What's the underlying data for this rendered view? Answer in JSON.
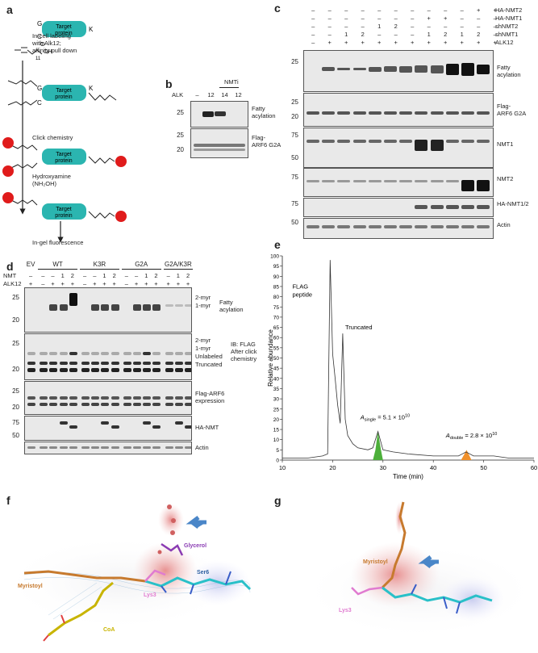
{
  "panels": {
    "a": {
      "label": "a",
      "step1": "In-cell labeling\nwith Alk12;\naffinity pull down",
      "step2": "Click chemistry",
      "step3_line1": "Hydroxyamine",
      "step3_line2": "(NH₂OH)",
      "step4": "In-gel fluorescence",
      "protein_label_line1": "Target",
      "protein_label_line2": "protein",
      "g": "G",
      "k": "K",
      "c": "C",
      "o": "O",
      "oh": "OH",
      "sub11": "11",
      "colors": {
        "protein": "#2bb5b0",
        "dye": "#e01b1b"
      }
    },
    "b": {
      "label": "b",
      "header_nmti": "NMTi",
      "row_label": "ALK",
      "lanes": [
        "–",
        "12",
        "14",
        "12"
      ],
      "blots": [
        "Fatty\nacylation",
        "Flag-\nARF6 G2A"
      ],
      "mw1": [
        "25"
      ],
      "mw2": [
        "25",
        "20"
      ]
    },
    "c": {
      "label": "c",
      "rows": [
        {
          "name": "HA-NMT2",
          "vals": [
            "–",
            "–",
            "–",
            "–",
            "–",
            "–",
            "–",
            "–",
            "–",
            "–",
            "+",
            "+"
          ]
        },
        {
          "name": "HA-NMT1",
          "vals": [
            "–",
            "–",
            "–",
            "–",
            "–",
            "–",
            "–",
            "+",
            "+",
            "–",
            "–",
            "–"
          ]
        },
        {
          "name": "shNMT2",
          "vals": [
            "–",
            "–",
            "–",
            "–",
            "1",
            "2",
            "–",
            "–",
            "–",
            "–",
            "–",
            "–"
          ]
        },
        {
          "name": "shNMT1",
          "vals": [
            "–",
            "–",
            "1",
            "2",
            "–",
            "–",
            "–",
            "1",
            "2",
            "1",
            "2",
            "–"
          ]
        },
        {
          "name": "ALK12",
          "vals": [
            "–",
            "+",
            "+",
            "+",
            "+",
            "+",
            "+",
            "+",
            "+",
            "+",
            "+",
            "+"
          ]
        }
      ],
      "blots": [
        {
          "label": "Fatty\nacylation",
          "mw": [
            "25"
          ]
        },
        {
          "label": "Flag-\nARF6 G2A",
          "mw": [
            "25",
            "20"
          ]
        },
        {
          "label": "NMT1",
          "mw": [
            "75",
            "50"
          ]
        },
        {
          "label": "NMT2",
          "mw": [
            "75"
          ]
        },
        {
          "label": "HA-NMT1/2",
          "mw": [
            "75"
          ]
        },
        {
          "label": "Actin",
          "mw": [
            "50"
          ]
        }
      ]
    },
    "d": {
      "label": "d",
      "groups": [
        "EV",
        "WT",
        "K3R",
        "G2A",
        "G2A/K3R"
      ],
      "nmt_label": "NMT",
      "nmt_vals": [
        "–",
        "–",
        "–",
        "1",
        "2",
        "–",
        "–",
        "1",
        "2",
        "–",
        "–",
        "1",
        "2",
        "–",
        "1",
        "2"
      ],
      "alk_label": "ALK12",
      "alk_vals": [
        "+",
        "–",
        "+",
        "+",
        "+",
        "–",
        "+",
        "+",
        "+",
        "–",
        "+",
        "+",
        "+",
        "+",
        "+",
        "+"
      ],
      "blot1": {
        "mw": [
          "25",
          "20"
        ],
        "bands": [
          "2-myr",
          "1-myr"
        ],
        "label": "Fatty\nacylation"
      },
      "blot2": {
        "mw": [
          "25",
          "20"
        ],
        "bands": [
          "2-myr",
          "1-myr",
          "Unlabeled",
          "Truncated"
        ],
        "label": "IB: FLAG\nAfter click\nchemistry"
      },
      "blot3": {
        "mw": [
          "25",
          "20"
        ],
        "label": "Flag-ARF6\nexpression"
      },
      "blot4": {
        "mw": [
          "75",
          "50"
        ],
        "label": "HA-NMT"
      },
      "blot5": {
        "label": "Actin"
      }
    },
    "e": {
      "label": "e",
      "ylabel": "Relative abundance",
      "xlabel": "Time (min)",
      "xticks": [
        "10",
        "20",
        "30",
        "40",
        "50",
        "60"
      ],
      "yticks": [
        "0",
        "5",
        "10",
        "15",
        "20",
        "25",
        "30",
        "35",
        "40",
        "45",
        "50",
        "55",
        "60",
        "65",
        "70",
        "75",
        "80",
        "85",
        "90",
        "95",
        "100"
      ],
      "ann_flag": "FLAG\npeptide",
      "ann_trunc": "Truncated",
      "a_single_sym": "A",
      "a_single_sub": "single",
      "a_single_val": " = 5.1 × 10",
      "a_single_exp": "10",
      "a_double_sym": "A",
      "a_double_sub": "double",
      "a_double_val": " = 2.8 × 10",
      "a_double_exp": "10",
      "colors": {
        "single": "#4caf3a",
        "double": "#f0902a"
      }
    },
    "f": {
      "label": "f",
      "labels": {
        "glycerol": "Glycerol",
        "ser6": "Ser6",
        "myristoyl": "Myristoyl",
        "lys3": "Lys3",
        "coa": "CoA"
      },
      "colors": {
        "glycerol": "#8a3bb3",
        "ser6": "#2e5fa0",
        "myristoyl": "#c77a2e",
        "lys3": "#e07bd0",
        "coa": "#c8b400"
      }
    },
    "g": {
      "label": "g",
      "labels": {
        "myristoyl": "Myristoyl",
        "lys3": "Lys3"
      }
    }
  },
  "chart_data": {
    "type": "line",
    "title": "",
    "xlabel": "Time (min)",
    "ylabel": "Relative abundance",
    "xlim": [
      10,
      60
    ],
    "ylim": [
      0,
      100
    ],
    "series": [
      {
        "x": [
          10,
          15,
          18,
          19,
          19.5,
          20,
          20.5,
          21,
          21.5,
          22,
          22.5,
          23,
          24,
          25,
          27,
          28,
          29,
          30,
          32,
          35,
          40,
          45,
          46.5,
          48,
          52,
          55,
          60
        ],
        "values": [
          1,
          1,
          2,
          3,
          98,
          52,
          40,
          27,
          18,
          62,
          20,
          12,
          8,
          6,
          5,
          6,
          14,
          5,
          4,
          3,
          2,
          2,
          4,
          2,
          2,
          1,
          1
        ]
      }
    ],
    "annotations": [
      "FLAG peptide",
      "Truncated",
      "Asingle = 5.1 × 10^10",
      "Adouble = 2.8 × 10^10"
    ]
  }
}
